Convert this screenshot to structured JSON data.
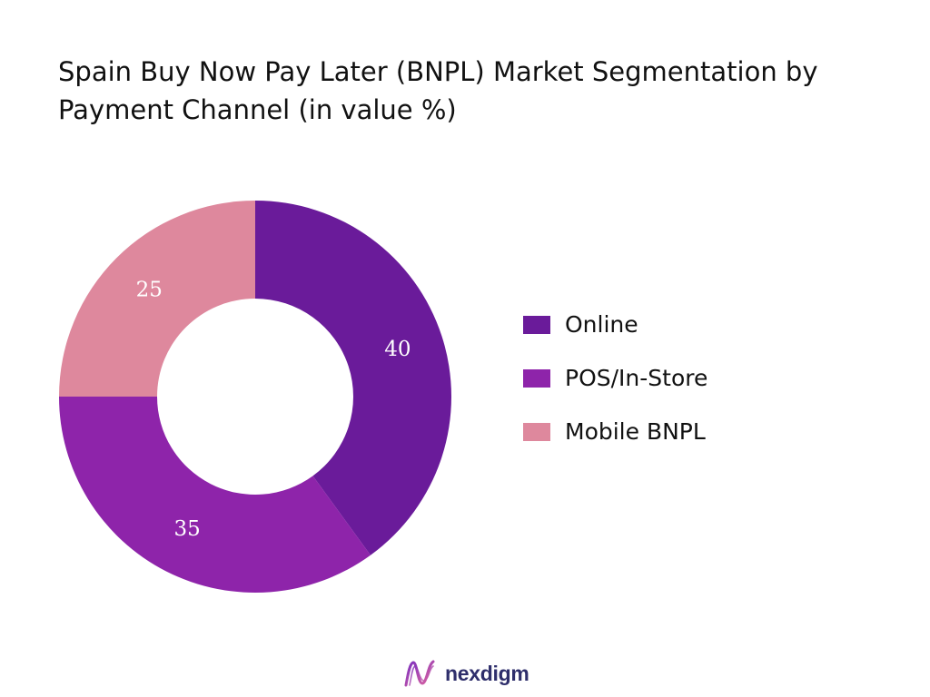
{
  "title": "Spain Buy Now Pay Later (BNPL) Market Segmentation by Payment Channel (in value %)",
  "chart_data": {
    "type": "pie",
    "donut": true,
    "categories": [
      "Online",
      "POS/In-Store",
      "Mobile BNPL"
    ],
    "values": [
      40,
      35,
      25
    ],
    "data_labels": [
      "40",
      "35",
      "25"
    ],
    "colors": [
      "#6a1b9a",
      "#8e24aa",
      "#de889d"
    ],
    "legend_position": "right",
    "start_angle": "top, clockwise"
  },
  "legend": {
    "items": [
      {
        "label": "Online",
        "color": "#6a1b9a"
      },
      {
        "label": "POS/In-Store",
        "color": "#8e24aa"
      },
      {
        "label": "Mobile BNPL",
        "color": "#de889d"
      }
    ]
  },
  "brand": {
    "name": "nexdigm",
    "icon": "nexdigm-logo-icon",
    "color": "#2e2e6b"
  }
}
